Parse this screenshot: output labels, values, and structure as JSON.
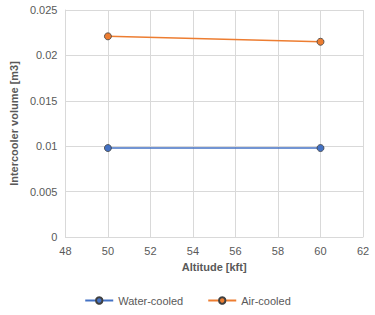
{
  "chart_data": {
    "type": "line",
    "x_label": "Altitude [kft]",
    "y_label": "Intercooler volume [m3]",
    "x": [
      50,
      60
    ],
    "series": [
      {
        "name": "Water-cooled",
        "color": "#4472c4",
        "values": [
          0.0098,
          0.0098
        ],
        "marker": "circle"
      },
      {
        "name": "Air-cooled",
        "color": "#ed7d31",
        "values": [
          0.0221,
          0.0215
        ],
        "marker": "circle"
      }
    ],
    "xlim": [
      48,
      62
    ],
    "xticks": [
      48,
      50,
      52,
      54,
      56,
      58,
      60,
      62
    ],
    "ylim": [
      0,
      0.025
    ],
    "yticks": [
      0,
      0.005,
      0.01,
      0.015,
      0.02,
      0.025
    ],
    "grid": true,
    "legend": "bottom"
  }
}
